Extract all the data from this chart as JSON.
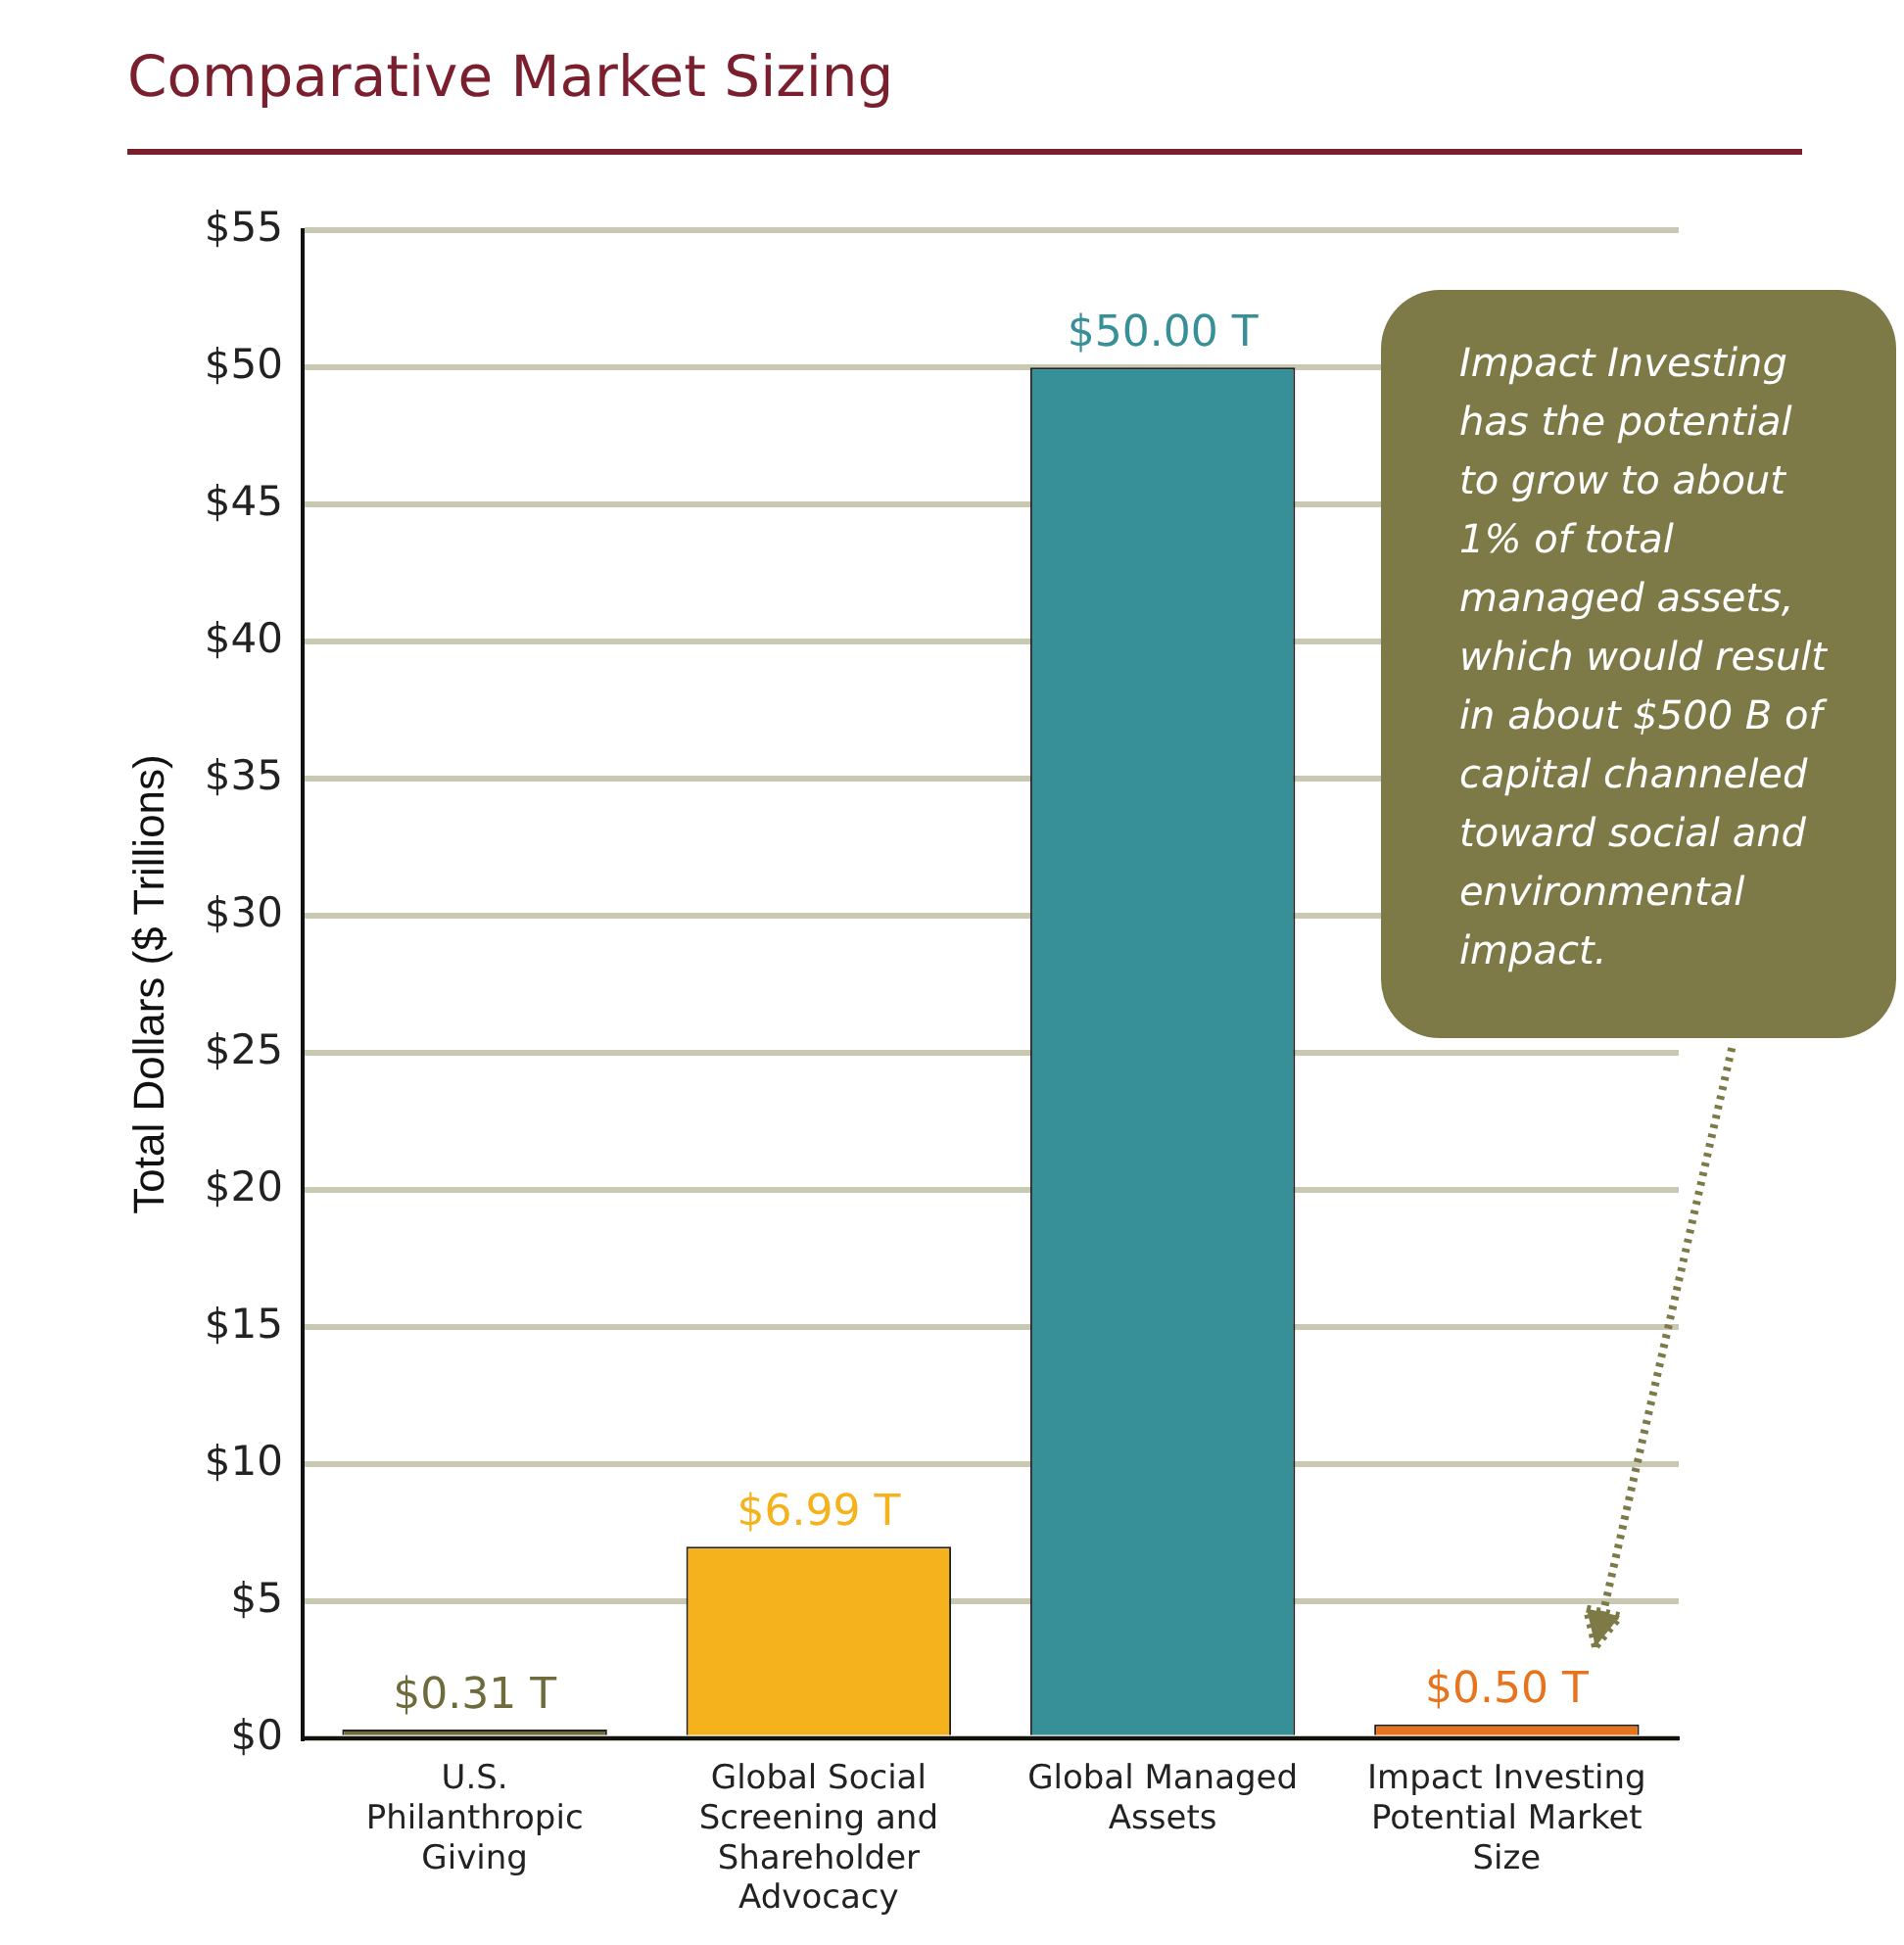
{
  "chart_data": {
    "type": "bar",
    "title": "Comparative Market Sizing",
    "ylabel": "Total Dollars ($ Trillions)",
    "categories": [
      "U.S. Philanthropic Giving",
      "Global Social Screening and Shareholder Advocacy",
      "Global Managed Assets",
      "Impact Investing Potential Market Size"
    ],
    "values": [
      0.31,
      6.99,
      50.0,
      0.5
    ],
    "colors": [
      "#6e6b3c",
      "#f6b21c",
      "#378f97",
      "#e8731c"
    ],
    "value_labels": [
      "$0.31 T",
      "$6.99 T",
      "$50.00 T",
      "$0.50 T"
    ],
    "ylim": [
      0,
      55
    ],
    "yticks": [
      {
        "value": 0,
        "label": "$0"
      },
      {
        "value": 5,
        "label": "$5"
      },
      {
        "value": 10,
        "label": "$10"
      },
      {
        "value": 15,
        "label": "$15"
      },
      {
        "value": 20,
        "label": "$20"
      },
      {
        "value": 25,
        "label": "$25"
      },
      {
        "value": 30,
        "label": "$30"
      },
      {
        "value": 35,
        "label": "$35"
      },
      {
        "value": 40,
        "label": "$40"
      },
      {
        "value": 45,
        "label": "$45"
      },
      {
        "value": 50,
        "label": "$50"
      },
      {
        "value": 55,
        "label": "$55"
      }
    ],
    "grid": "y",
    "legend": false,
    "annotations": [
      "Impact Investing has the potential to grow to about 1% of total managed assets, which would result in about $500 B of capital channeled toward social and environmental impact."
    ]
  }
}
